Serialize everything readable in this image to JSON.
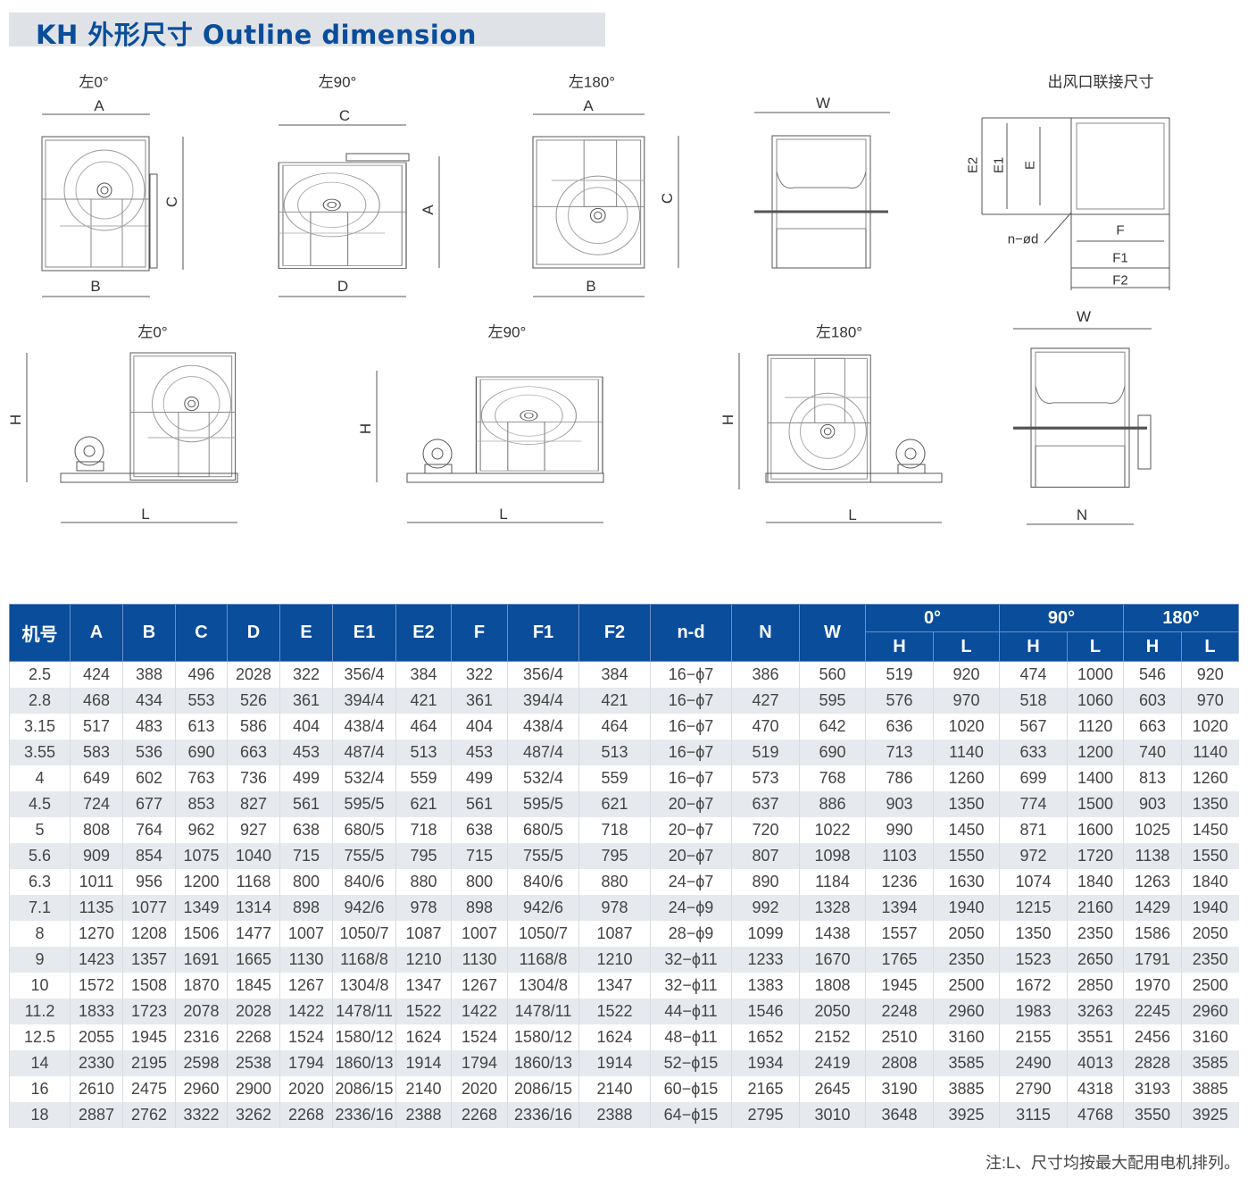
{
  "header": {
    "title": "KH  外形尺寸  Outline dimension",
    "accent_color": "#0a4d9b"
  },
  "drawings": {
    "top": {
      "left0": {
        "caption": "左0°",
        "dim_top": "A",
        "dim_bottom": "B",
        "dim_side": "C"
      },
      "left90": {
        "caption": "左90°",
        "dim_top": "C",
        "dim_bottom": "D",
        "dim_side": "A"
      },
      "left180": {
        "caption": "左180°",
        "dim_top": "A",
        "dim_bottom": "B",
        "dim_side": "C"
      },
      "front": {
        "dim_top": "W"
      },
      "outlet": {
        "caption": "出风口联接尺寸",
        "e2": "E2",
        "e1": "E1",
        "e": "E",
        "nd": "n−ød",
        "f": "F",
        "f1": "F1",
        "f2": "F2"
      }
    },
    "bottom": {
      "left0": {
        "caption": "左0°",
        "h": "H",
        "l": "L"
      },
      "left90": {
        "caption": "左90°",
        "h": "H",
        "l": "L"
      },
      "left180": {
        "caption": "左180°",
        "h": "H",
        "l": "L"
      },
      "front": {
        "w": "W",
        "n": "N"
      }
    }
  },
  "table": {
    "columns": [
      "机号",
      "A",
      "B",
      "C",
      "D",
      "E",
      "E1",
      "E2",
      "F",
      "F1",
      "F2",
      "n-d",
      "N",
      "W"
    ],
    "groups": [
      "0°",
      "90°",
      "180°"
    ],
    "sub": [
      "H",
      "L"
    ],
    "rows": [
      [
        "2.5",
        "424",
        "388",
        "496",
        "2028",
        "322",
        "356/4",
        "384",
        "322",
        "356/4",
        "384",
        "16−ϕ7",
        "386",
        "560",
        "519",
        "920",
        "474",
        "1000",
        "546",
        "920"
      ],
      [
        "2.8",
        "468",
        "434",
        "553",
        "526",
        "361",
        "394/4",
        "421",
        "361",
        "394/4",
        "421",
        "16−ϕ7",
        "427",
        "595",
        "576",
        "970",
        "518",
        "1060",
        "603",
        "970"
      ],
      [
        "3.15",
        "517",
        "483",
        "613",
        "586",
        "404",
        "438/4",
        "464",
        "404",
        "438/4",
        "464",
        "16−ϕ7",
        "470",
        "642",
        "636",
        "1020",
        "567",
        "1120",
        "663",
        "1020"
      ],
      [
        "3.55",
        "583",
        "536",
        "690",
        "663",
        "453",
        "487/4",
        "513",
        "453",
        "487/4",
        "513",
        "16−ϕ7",
        "519",
        "690",
        "713",
        "1140",
        "633",
        "1200",
        "740",
        "1140"
      ],
      [
        "4",
        "649",
        "602",
        "763",
        "736",
        "499",
        "532/4",
        "559",
        "499",
        "532/4",
        "559",
        "16−ϕ7",
        "573",
        "768",
        "786",
        "1260",
        "699",
        "1400",
        "813",
        "1260"
      ],
      [
        "4.5",
        "724",
        "677",
        "853",
        "827",
        "561",
        "595/5",
        "621",
        "561",
        "595/5",
        "621",
        "20−ϕ7",
        "637",
        "886",
        "903",
        "1350",
        "774",
        "1500",
        "903",
        "1350"
      ],
      [
        "5",
        "808",
        "764",
        "962",
        "927",
        "638",
        "680/5",
        "718",
        "638",
        "680/5",
        "718",
        "20−ϕ7",
        "720",
        "1022",
        "990",
        "1450",
        "871",
        "1600",
        "1025",
        "1450"
      ],
      [
        "5.6",
        "909",
        "854",
        "1075",
        "1040",
        "715",
        "755/5",
        "795",
        "715",
        "755/5",
        "795",
        "20−ϕ7",
        "807",
        "1098",
        "1103",
        "1550",
        "972",
        "1720",
        "1138",
        "1550"
      ],
      [
        "6.3",
        "1011",
        "956",
        "1200",
        "1168",
        "800",
        "840/6",
        "880",
        "800",
        "840/6",
        "880",
        "24−ϕ7",
        "890",
        "1184",
        "1236",
        "1630",
        "1074",
        "1840",
        "1263",
        "1840"
      ],
      [
        "7.1",
        "1135",
        "1077",
        "1349",
        "1314",
        "898",
        "942/6",
        "978",
        "898",
        "942/6",
        "978",
        "24−ϕ9",
        "992",
        "1328",
        "1394",
        "1940",
        "1215",
        "2160",
        "1429",
        "1940"
      ],
      [
        "8",
        "1270",
        "1208",
        "1506",
        "1477",
        "1007",
        "1050/7",
        "1087",
        "1007",
        "1050/7",
        "1087",
        "28−ϕ9",
        "1099",
        "1438",
        "1557",
        "2050",
        "1350",
        "2350",
        "1586",
        "2050"
      ],
      [
        "9",
        "1423",
        "1357",
        "1691",
        "1665",
        "1130",
        "1168/8",
        "1210",
        "1130",
        "1168/8",
        "1210",
        "32−ϕ11",
        "1233",
        "1670",
        "1765",
        "2350",
        "1523",
        "2650",
        "1791",
        "2350"
      ],
      [
        "10",
        "1572",
        "1508",
        "1870",
        "1845",
        "1267",
        "1304/8",
        "1347",
        "1267",
        "1304/8",
        "1347",
        "32−ϕ11",
        "1383",
        "1808",
        "1945",
        "2500",
        "1672",
        "2850",
        "1970",
        "2500"
      ],
      [
        "11.2",
        "1833",
        "1723",
        "2078",
        "2028",
        "1422",
        "1478/11",
        "1522",
        "1422",
        "1478/11",
        "1522",
        "44−ϕ11",
        "1546",
        "2050",
        "2248",
        "2960",
        "1983",
        "3263",
        "2245",
        "2960"
      ],
      [
        "12.5",
        "2055",
        "1945",
        "2316",
        "2268",
        "1524",
        "1580/12",
        "1624",
        "1524",
        "1580/12",
        "1624",
        "48−ϕ11",
        "1652",
        "2152",
        "2510",
        "3160",
        "2155",
        "3551",
        "2456",
        "3160"
      ],
      [
        "14",
        "2330",
        "2195",
        "2598",
        "2538",
        "1794",
        "1860/13",
        "1914",
        "1794",
        "1860/13",
        "1914",
        "52−ϕ15",
        "1934",
        "2419",
        "2808",
        "3585",
        "2490",
        "4013",
        "2828",
        "3585"
      ],
      [
        "16",
        "2610",
        "2475",
        "2960",
        "2900",
        "2020",
        "2086/15",
        "2140",
        "2020",
        "2086/15",
        "2140",
        "60−ϕ15",
        "2165",
        "2645",
        "3190",
        "3885",
        "2790",
        "4318",
        "3193",
        "3885"
      ],
      [
        "18",
        "2887",
        "2762",
        "3322",
        "3262",
        "2268",
        "2336/16",
        "2388",
        "2268",
        "2336/16",
        "2388",
        "64−ϕ15",
        "2795",
        "3010",
        "3648",
        "3925",
        "3115",
        "4768",
        "3550",
        "3925"
      ]
    ]
  },
  "note": "注:L、尺寸均按最大配用电机排列。"
}
